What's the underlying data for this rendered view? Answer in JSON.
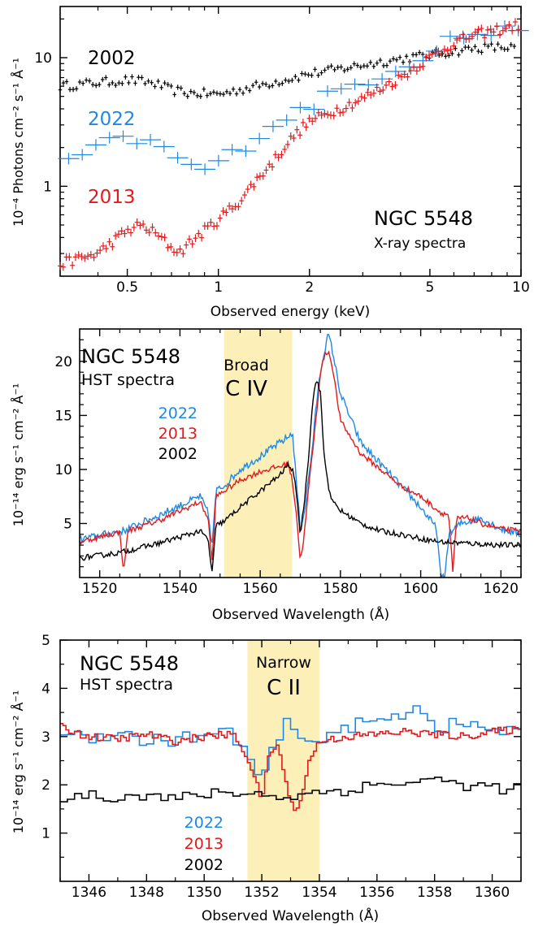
{
  "chart_data": [
    {
      "type": "scatter",
      "title": "",
      "xlabel": "Observed energy (keV)",
      "ylabel": "10⁻⁴ Photons cm⁻² s⁻¹ Å⁻¹",
      "xscale": "log",
      "yscale": "log",
      "xlim": [
        0.3,
        10
      ],
      "ylim": [
        0.2,
        25
      ],
      "x_ticks": [
        0.5,
        1,
        2,
        5,
        10
      ],
      "y_ticks": [
        1,
        10
      ],
      "annotations": [
        "NGC 5548",
        "X-ray spectra"
      ],
      "series": [
        {
          "name": "2002",
          "color": "#000000",
          "x": [
            0.3,
            0.4,
            0.5,
            0.6,
            0.7,
            0.8,
            1.0,
            1.5,
            2.0,
            3.0,
            4.0,
            5.0,
            6.0,
            7.0,
            8.0,
            10.0
          ],
          "y": [
            6.0,
            6.4,
            6.7,
            6.4,
            5.6,
            5.3,
            5.2,
            6.4,
            7.5,
            8.8,
            9.8,
            10.5,
            11.2,
            11.8,
            12.0,
            12.0
          ]
        },
        {
          "name": "2022",
          "color": "#1e88e5",
          "x": [
            0.33,
            0.38,
            0.45,
            0.55,
            0.65,
            0.75,
            0.85,
            1.0,
            1.2,
            1.5,
            1.7,
            2.0,
            2.5,
            3.0,
            4.0,
            5.0,
            6.0,
            7.0,
            8.0,
            10.0
          ],
          "y": [
            1.5,
            2.0,
            2.2,
            2.3,
            2.0,
            1.6,
            1.3,
            1.5,
            2.0,
            3.0,
            3.5,
            4.2,
            5.5,
            6.5,
            8.5,
            11.0,
            14.5,
            15.0,
            15.5,
            17.0
          ]
        },
        {
          "name": "2013",
          "color": "#e31a1c",
          "x": [
            0.3,
            0.4,
            0.5,
            0.55,
            0.6,
            0.7,
            0.75,
            0.8,
            0.9,
            1.0,
            1.2,
            1.5,
            2.0,
            2.5,
            3.0,
            4.0,
            5.0,
            6.0,
            7.0,
            8.0,
            10.0
          ],
          "y": [
            0.25,
            0.3,
            0.45,
            0.5,
            0.45,
            0.33,
            0.31,
            0.36,
            0.45,
            0.55,
            0.8,
            1.5,
            3.2,
            4.0,
            4.8,
            7.0,
            10.0,
            13.0,
            15.0,
            16.0,
            18.0
          ]
        }
      ]
    },
    {
      "type": "line",
      "title": "",
      "xlabel": "Observed Wavelength (Å)",
      "ylabel": "10⁻¹⁴ erg s⁻¹ cm⁻² Å⁻¹",
      "xlim": [
        1515,
        1625
      ],
      "ylim": [
        0,
        23
      ],
      "x_ticks": [
        1520,
        1540,
        1560,
        1580,
        1600,
        1620
      ],
      "y_ticks": [
        5,
        10,
        15,
        20
      ],
      "highlight": {
        "range": [
          1551,
          1568
        ],
        "label_line1": "Broad",
        "label_line2": "C IV"
      },
      "annotations": [
        "NGC 5548",
        "HST spectra"
      ],
      "series": [
        {
          "name": "2022",
          "color": "#1e88e5",
          "x": [
            1515,
            1525,
            1526,
            1527,
            1535,
            1545,
            1547,
            1548,
            1549,
            1551,
            1555,
            1560,
            1565,
            1567,
            1568,
            1569,
            1570,
            1571,
            1572,
            1573,
            1574,
            1575,
            1576,
            1577,
            1578,
            1580,
            1585,
            1590,
            1595,
            1600,
            1604,
            1605,
            1606,
            1607,
            1610,
            1615,
            1620,
            1625
          ],
          "y": [
            3.5,
            4.3,
            4.3,
            4.5,
            5.8,
            7.5,
            6.0,
            3.0,
            8.0,
            8.5,
            10.0,
            11.2,
            12.5,
            13.0,
            13.5,
            9.0,
            4.5,
            6.0,
            9.0,
            12.0,
            16.0,
            19.0,
            21.0,
            22.5,
            21.0,
            17.0,
            12.5,
            10.5,
            8.5,
            6.5,
            4.5,
            0.0,
            0.0,
            4.0,
            5.0,
            5.5,
            4.5,
            4.0
          ]
        },
        {
          "name": "2013",
          "color": "#e31a1c",
          "x": [
            1515,
            1525,
            1526,
            1527,
            1535,
            1545,
            1547,
            1548,
            1549,
            1551,
            1555,
            1560,
            1565,
            1567,
            1568,
            1569,
            1570,
            1571,
            1572,
            1573,
            1574,
            1575,
            1576,
            1577,
            1578,
            1580,
            1585,
            1590,
            1595,
            1600,
            1605,
            1607,
            1608,
            1609,
            1612,
            1615,
            1620,
            1625
          ],
          "y": [
            3.3,
            4.2,
            0.5,
            4.3,
            5.3,
            7.0,
            5.5,
            1.5,
            7.5,
            8.0,
            9.0,
            9.8,
            10.3,
            10.5,
            9.0,
            6.0,
            1.5,
            4.0,
            8.0,
            11.5,
            15.0,
            19.0,
            20.5,
            21.0,
            19.5,
            14.5,
            11.5,
            10.0,
            8.5,
            7.5,
            6.0,
            5.8,
            0.5,
            5.5,
            5.5,
            5.0,
            4.5,
            4.3
          ]
        },
        {
          "name": "2002",
          "color": "#000000",
          "x": [
            1515,
            1525,
            1535,
            1545,
            1547,
            1548,
            1549,
            1551,
            1555,
            1560,
            1565,
            1567,
            1568,
            1569,
            1570,
            1571,
            1572,
            1573,
            1574,
            1575,
            1576,
            1577,
            1578,
            1580,
            1585,
            1590,
            1595,
            1600,
            1605,
            1610,
            1615,
            1620,
            1625
          ],
          "y": [
            1.8,
            2.3,
            3.2,
            4.3,
            3.5,
            0.5,
            4.8,
            5.2,
            6.5,
            8.0,
            9.5,
            10.5,
            10.0,
            8.0,
            4.0,
            7.0,
            11.0,
            16.0,
            18.5,
            17.0,
            11.0,
            8.5,
            7.0,
            6.2,
            5.0,
            4.3,
            4.0,
            3.6,
            3.3,
            3.2,
            3.1,
            3.0,
            3.0
          ]
        }
      ]
    },
    {
      "type": "line",
      "title": "",
      "xlabel": "Observed Wavelength (Å)",
      "ylabel": "10⁻¹⁴ erg s⁻¹ cm⁻² Å⁻¹",
      "xlim": [
        1345,
        1361
      ],
      "ylim": [
        0,
        5
      ],
      "x_ticks": [
        1346,
        1348,
        1350,
        1352,
        1354,
        1356,
        1358,
        1360
      ],
      "y_ticks": [
        1,
        2,
        3,
        4,
        5
      ],
      "highlight": {
        "range": [
          1351.5,
          1354
        ],
        "label_line1": "Narrow",
        "label_line2": "C II"
      },
      "annotations": [
        "NGC 5548",
        "HST spectra"
      ],
      "series": [
        {
          "name": "2022",
          "color": "#1e88e5",
          "x": [
            1345,
            1346,
            1347,
            1348,
            1349,
            1350,
            1351,
            1351.5,
            1352,
            1352.5,
            1353,
            1353.5,
            1354,
            1355,
            1356,
            1357,
            1357.5,
            1358,
            1359,
            1360,
            1361
          ],
          "y": [
            3.1,
            3.0,
            3.1,
            2.9,
            2.95,
            3.0,
            3.1,
            2.6,
            2.1,
            2.8,
            3.4,
            2.7,
            3.0,
            3.2,
            3.3,
            3.5,
            3.7,
            3.2,
            3.25,
            3.15,
            3.1
          ]
        },
        {
          "name": "2013",
          "color": "#e31a1c",
          "x": [
            1345,
            1346,
            1347,
            1348,
            1349,
            1350,
            1351,
            1351.5,
            1352,
            1352.3,
            1352.6,
            1353,
            1353.3,
            1353.6,
            1354,
            1355,
            1356,
            1357,
            1358,
            1359,
            1360,
            1361
          ],
          "y": [
            3.2,
            3.0,
            2.95,
            3.05,
            2.9,
            3.0,
            3.05,
            2.6,
            1.7,
            2.7,
            2.8,
            1.6,
            1.5,
            2.4,
            2.9,
            3.0,
            3.05,
            3.1,
            3.05,
            3.0,
            3.1,
            3.15
          ]
        },
        {
          "name": "2002",
          "color": "#000000",
          "x": [
            1345,
            1346,
            1347,
            1348,
            1349,
            1350,
            1351,
            1352,
            1353,
            1354,
            1355,
            1356,
            1357,
            1358,
            1359,
            1360,
            1361
          ],
          "y": [
            1.75,
            1.8,
            1.75,
            1.8,
            1.7,
            1.8,
            1.85,
            1.8,
            1.75,
            1.85,
            1.9,
            2.0,
            2.05,
            2.1,
            2.0,
            1.95,
            1.9
          ]
        }
      ]
    }
  ]
}
